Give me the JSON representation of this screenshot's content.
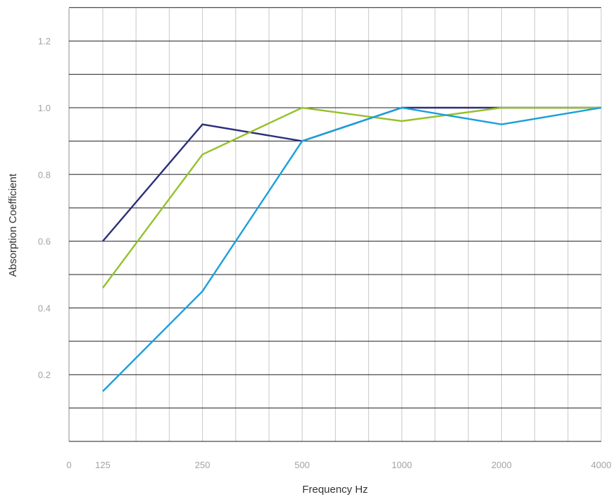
{
  "chart_data": {
    "type": "line",
    "title": "",
    "xlabel": "Frequency Hz",
    "ylabel": "Absorption Coefficient",
    "x_origin_label": "0",
    "categories": [
      "125",
      "250",
      "500",
      "1000",
      "2000",
      "4000"
    ],
    "y_ticks": [
      0.2,
      0.4,
      0.6,
      0.8,
      1.0,
      1.2
    ],
    "y_tick_labels": [
      "0.2",
      "0.4",
      "0.6",
      "0.8",
      "1.0",
      "1.2"
    ],
    "ylim": [
      0,
      1.3
    ],
    "grid": true,
    "series": [
      {
        "color": "#2b2f7a",
        "values": [
          0.6,
          0.95,
          0.9,
          1.0,
          1.0,
          1.0
        ]
      },
      {
        "color": "#95c12a",
        "values": [
          0.46,
          0.86,
          1.0,
          0.96,
          1.0,
          1.0
        ]
      },
      {
        "color": "#1a9fdc",
        "values": [
          0.15,
          0.45,
          0.9,
          1.0,
          0.95,
          1.0
        ]
      }
    ]
  }
}
